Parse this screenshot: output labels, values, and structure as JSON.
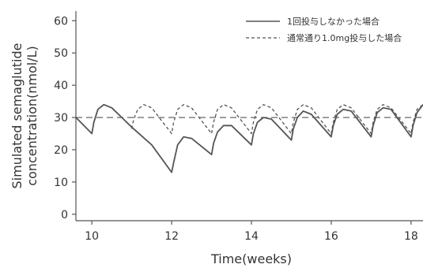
{
  "chart_data": {
    "type": "line",
    "xlabel": "Time(weeks)",
    "ylabel": [
      "Simulated semaglutide",
      "concentration(nmol/L)"
    ],
    "xlim": [
      9.6,
      18.3
    ],
    "ylim": [
      -2,
      63
    ],
    "xticks": [
      10,
      12,
      14,
      16,
      18
    ],
    "yticks": [
      0,
      10,
      20,
      30,
      40,
      50,
      60
    ],
    "reference_line": {
      "y": 30,
      "style": "dashed"
    },
    "legend": {
      "placement": "top-right"
    },
    "series": [
      {
        "name": "1回投与しなかった場合",
        "style": "solid",
        "color": "#555555",
        "points": [
          [
            9.6,
            30
          ],
          [
            10,
            25
          ],
          [
            10.05,
            28.5
          ],
          [
            10.15,
            32.5
          ],
          [
            10.3,
            34
          ],
          [
            10.5,
            33
          ],
          [
            10.75,
            30
          ],
          [
            11,
            27
          ],
          [
            11.5,
            21.5
          ],
          [
            12,
            13
          ],
          [
            12.05,
            16
          ],
          [
            12.15,
            21.5
          ],
          [
            12.3,
            24
          ],
          [
            12.5,
            23.5
          ],
          [
            13,
            18.5
          ],
          [
            13.05,
            22
          ],
          [
            13.15,
            25.5
          ],
          [
            13.3,
            27.5
          ],
          [
            13.5,
            27.5
          ],
          [
            14,
            21.5
          ],
          [
            14.05,
            25
          ],
          [
            14.15,
            28.5
          ],
          [
            14.3,
            30
          ],
          [
            14.5,
            29.5
          ],
          [
            15,
            23
          ],
          [
            15.05,
            26.5
          ],
          [
            15.15,
            30
          ],
          [
            15.3,
            32
          ],
          [
            15.5,
            31
          ],
          [
            16,
            24
          ],
          [
            16.05,
            27.5
          ],
          [
            16.15,
            31
          ],
          [
            16.3,
            32.5
          ],
          [
            16.5,
            32
          ],
          [
            17,
            24
          ],
          [
            17.05,
            27.5
          ],
          [
            17.15,
            31.5
          ],
          [
            17.3,
            33
          ],
          [
            17.5,
            32.5
          ],
          [
            18,
            24
          ],
          [
            18.05,
            27.5
          ],
          [
            18.15,
            31.5
          ],
          [
            18.3,
            34
          ]
        ]
      },
      {
        "name": "通常通り1.0mg投与した場合",
        "style": "dashed",
        "color": "#555555",
        "points": [
          [
            11,
            26.5
          ],
          [
            11.05,
            29.5
          ],
          [
            11.15,
            32.5
          ],
          [
            11.3,
            34
          ],
          [
            11.5,
            33
          ],
          [
            12,
            25
          ],
          [
            12.05,
            28.5
          ],
          [
            12.15,
            32.5
          ],
          [
            12.3,
            34
          ],
          [
            12.5,
            33
          ],
          [
            13,
            25
          ],
          [
            13.05,
            28.5
          ],
          [
            13.15,
            32.5
          ],
          [
            13.3,
            34
          ],
          [
            13.5,
            33
          ],
          [
            14,
            25
          ],
          [
            14.05,
            28.5
          ],
          [
            14.15,
            32.5
          ],
          [
            14.3,
            34
          ],
          [
            14.5,
            33
          ],
          [
            15,
            25
          ],
          [
            15.05,
            28.5
          ],
          [
            15.15,
            32.5
          ],
          [
            15.3,
            34
          ],
          [
            15.5,
            33
          ],
          [
            16,
            25
          ],
          [
            16.05,
            28.5
          ],
          [
            16.15,
            32.5
          ],
          [
            16.3,
            34
          ],
          [
            16.5,
            33
          ],
          [
            17,
            25
          ],
          [
            17.05,
            28.5
          ],
          [
            17.15,
            32.5
          ],
          [
            17.3,
            34
          ],
          [
            17.5,
            33
          ],
          [
            18,
            25
          ],
          [
            18.05,
            28.5
          ],
          [
            18.15,
            32.5
          ],
          [
            18.3,
            34
          ]
        ]
      }
    ]
  }
}
